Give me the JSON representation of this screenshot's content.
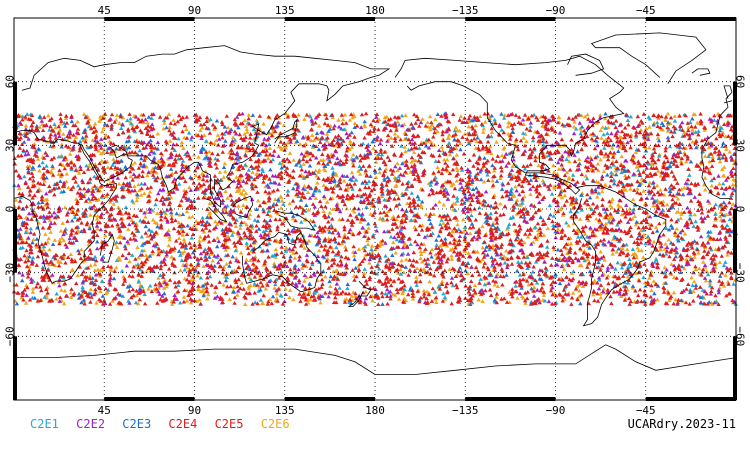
{
  "map": {
    "projection": "cylindrical-equidistant",
    "central_longitude": 180,
    "lon_range": [
      0,
      360
    ],
    "lat_range": [
      -90,
      90
    ],
    "observation_lat_band": [
      -45,
      45
    ],
    "grid": true,
    "frame_style": "alternating-black-white-ticks"
  },
  "chart_data": {
    "type": "scatter",
    "marker": "triangle",
    "x_ticks": [
      {
        "lon": 45,
        "label": "45"
      },
      {
        "lon": 90,
        "label": "90"
      },
      {
        "lon": 135,
        "label": "135"
      },
      {
        "lon": 180,
        "label": "180"
      },
      {
        "lon": 225,
        "label": "−135"
      },
      {
        "lon": 270,
        "label": "−90"
      },
      {
        "lon": 315,
        "label": "−45"
      }
    ],
    "y_ticks": [
      {
        "lat": 60,
        "label": "60"
      },
      {
        "lat": 30,
        "label": "30"
      },
      {
        "lat": 0,
        "label": "0"
      },
      {
        "lat": -30,
        "label": "−30"
      },
      {
        "lat": -60,
        "label": "−60"
      }
    ],
    "series": [
      {
        "name": "C2E1",
        "color": "#22a8d6"
      },
      {
        "name": "C2E2",
        "color": "#a020c8"
      },
      {
        "name": "C2E3",
        "color": "#1e6fd0"
      },
      {
        "name": "C2E4",
        "color": "#d81e1e"
      },
      {
        "name": "C2E5",
        "color": "#e01c1c"
      },
      {
        "name": "C2E6",
        "color": "#f2a51a"
      }
    ]
  },
  "caption": "UCARdry.2023-11"
}
